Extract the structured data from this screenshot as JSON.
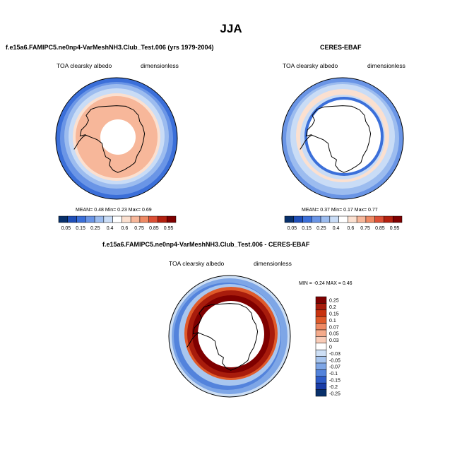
{
  "figure": {
    "title": "JJA"
  },
  "colors": {
    "sequential": [
      "#08306b",
      "#1f4fb8",
      "#3b6fd9",
      "#6a95e6",
      "#9cbcef",
      "#c9dcf6",
      "#ffffff",
      "#fbe0d0",
      "#f7b79a",
      "#ef8a64",
      "#dc4f35",
      "#b3200f",
      "#7f0000"
    ],
    "diverging": [
      "#7f0000",
      "#a81c0c",
      "#c8330f",
      "#df5a2a",
      "#ef8a64",
      "#f5ab8b",
      "#f9ccb8",
      "#ffffff",
      "#cddff5",
      "#a8c6ef",
      "#7ea6e6",
      "#5383dc",
      "#2e5cc8",
      "#1a3da8",
      "#08306b"
    ],
    "land_outline": "#000000"
  },
  "chart_data": [
    {
      "type": "heatmap",
      "projection": "south-polar-stereographic",
      "title": "f.e15a6.FAMIPC5.ne0np4-VarMeshNH3.Club_Test.006 (yrs 1979-2004)",
      "left_label": "TOA clearsky albedo",
      "right_label": "dimensionless",
      "stats": {
        "mean_label": "MEAN=",
        "mean": "0.48",
        "min_label": "Min=",
        "min": "0.23",
        "max_label": "Max=",
        "max": "0.69"
      },
      "colorbar": {
        "orientation": "horizontal",
        "labels": [
          "0.05",
          "0.15",
          "0.25",
          "0.4",
          "0.6",
          "0.75",
          "0.85",
          "0.95"
        ]
      }
    },
    {
      "type": "heatmap",
      "projection": "south-polar-stereographic",
      "title": "CERES-EBAF",
      "left_label": "TOA clearsky albedo",
      "right_label": "dimensionless",
      "stats": {
        "mean_label": "MEAN=",
        "mean": "0.37",
        "min_label": "Min=",
        "min": "0.17",
        "max_label": "Max=",
        "max": "0.77"
      },
      "colorbar": {
        "orientation": "horizontal",
        "labels": [
          "0.05",
          "0.15",
          "0.25",
          "0.4",
          "0.6",
          "0.75",
          "0.85",
          "0.95"
        ]
      }
    },
    {
      "type": "heatmap",
      "projection": "south-polar-stereographic",
      "title": "f.e15a6.FAMIPC5.ne0np4-VarMeshNH3.Club_Test.006 - CERES-EBAF",
      "left_label": "TOA clearsky albedo",
      "right_label": "dimensionless",
      "stats": {
        "min_label": "MIN =",
        "min": "-0.24",
        "max_label": "MAX =",
        "max": "0.46"
      },
      "colorbar": {
        "orientation": "vertical",
        "labels": [
          "0.25",
          "0.2",
          "0.15",
          "0.1",
          "0.07",
          "0.05",
          "0.03",
          "0",
          "-0.03",
          "-0.05",
          "-0.07",
          "-0.1",
          "-0.15",
          "-0.2",
          "-0.25"
        ]
      }
    }
  ]
}
